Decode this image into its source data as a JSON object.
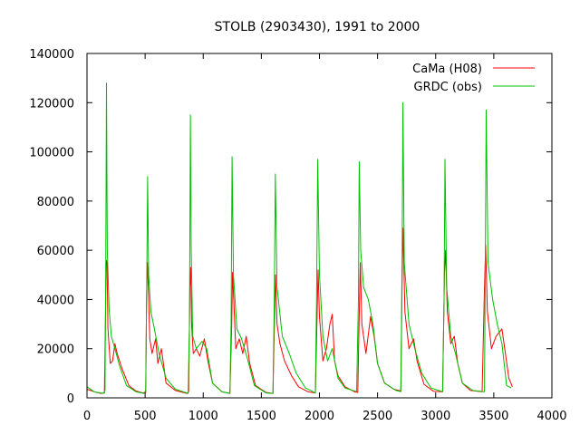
{
  "chart_data": {
    "type": "line",
    "title": "STOLB (2903430), 1991 to 2000",
    "xlabel": "",
    "ylabel": "",
    "xlim": [
      0,
      4000
    ],
    "ylim": [
      0,
      140000
    ],
    "xticks": [
      0,
      500,
      1000,
      1500,
      2000,
      2500,
      3000,
      3500,
      4000
    ],
    "yticks": [
      0,
      20000,
      40000,
      60000,
      80000,
      100000,
      120000,
      140000
    ],
    "grid": false,
    "legend_position": "top-right",
    "series": [
      {
        "name": "CaMa (H08)",
        "color": "#ff0000",
        "points": [
          [
            0,
            3500
          ],
          [
            60,
            2500
          ],
          [
            120,
            1800
          ],
          [
            150,
            2000
          ],
          [
            158,
            30000
          ],
          [
            165,
            56000
          ],
          [
            172,
            55000
          ],
          [
            180,
            28000
          ],
          [
            200,
            14000
          ],
          [
            220,
            15000
          ],
          [
            240,
            22000
          ],
          [
            260,
            18000
          ],
          [
            300,
            12000
          ],
          [
            360,
            5000
          ],
          [
            420,
            2800
          ],
          [
            480,
            2000
          ],
          [
            505,
            2200
          ],
          [
            512,
            40000
          ],
          [
            520,
            55000
          ],
          [
            528,
            45000
          ],
          [
            540,
            24000
          ],
          [
            560,
            18000
          ],
          [
            590,
            24000
          ],
          [
            610,
            14000
          ],
          [
            640,
            20000
          ],
          [
            680,
            6000
          ],
          [
            760,
            3000
          ],
          [
            860,
            1800
          ],
          [
            875,
            2500
          ],
          [
            885,
            45000
          ],
          [
            892,
            53000
          ],
          [
            900,
            30000
          ],
          [
            915,
            18000
          ],
          [
            940,
            20000
          ],
          [
            970,
            17000
          ],
          [
            1010,
            24000
          ],
          [
            1040,
            15000
          ],
          [
            1080,
            6000
          ],
          [
            1160,
            2500
          ],
          [
            1230,
            1800
          ],
          [
            1245,
            30000
          ],
          [
            1252,
            51000
          ],
          [
            1262,
            40000
          ],
          [
            1280,
            20000
          ],
          [
            1310,
            24000
          ],
          [
            1340,
            18000
          ],
          [
            1370,
            25000
          ],
          [
            1400,
            14000
          ],
          [
            1450,
            5000
          ],
          [
            1540,
            2200
          ],
          [
            1600,
            1800
          ],
          [
            1615,
            35000
          ],
          [
            1622,
            50000
          ],
          [
            1635,
            30000
          ],
          [
            1660,
            22000
          ],
          [
            1700,
            15000
          ],
          [
            1760,
            9000
          ],
          [
            1820,
            4500
          ],
          [
            1900,
            2500
          ],
          [
            1965,
            2000
          ],
          [
            1978,
            30000
          ],
          [
            1988,
            52000
          ],
          [
            2000,
            33000
          ],
          [
            2030,
            15000
          ],
          [
            2060,
            20000
          ],
          [
            2090,
            30000
          ],
          [
            2110,
            34000
          ],
          [
            2130,
            15000
          ],
          [
            2160,
            9000
          ],
          [
            2220,
            4500
          ],
          [
            2300,
            2500
          ],
          [
            2330,
            2200
          ],
          [
            2345,
            40000
          ],
          [
            2352,
            55000
          ],
          [
            2365,
            30000
          ],
          [
            2400,
            18000
          ],
          [
            2440,
            33000
          ],
          [
            2470,
            25000
          ],
          [
            2500,
            14000
          ],
          [
            2560,
            6000
          ],
          [
            2640,
            3500
          ],
          [
            2700,
            2800
          ],
          [
            2712,
            50000
          ],
          [
            2720,
            69000
          ],
          [
            2735,
            35000
          ],
          [
            2770,
            20000
          ],
          [
            2810,
            24000
          ],
          [
            2840,
            15000
          ],
          [
            2900,
            5500
          ],
          [
            2980,
            2700
          ],
          [
            3060,
            2500
          ],
          [
            3075,
            50000
          ],
          [
            3085,
            60000
          ],
          [
            3100,
            35000
          ],
          [
            3130,
            22000
          ],
          [
            3160,
            25000
          ],
          [
            3190,
            14000
          ],
          [
            3230,
            6000
          ],
          [
            3300,
            3000
          ],
          [
            3400,
            2500
          ],
          [
            3420,
            45000
          ],
          [
            3430,
            62000
          ],
          [
            3445,
            35000
          ],
          [
            3480,
            20000
          ],
          [
            3520,
            25000
          ],
          [
            3570,
            28000
          ],
          [
            3600,
            18000
          ],
          [
            3630,
            8000
          ],
          [
            3660,
            4500
          ]
        ]
      },
      {
        "name": "GRDC (obs)",
        "color": "#00c000",
        "points": [
          [
            0,
            4500
          ],
          [
            60,
            2500
          ],
          [
            140,
            1800
          ],
          [
            155,
            3000
          ],
          [
            162,
            60000
          ],
          [
            168,
            128000
          ],
          [
            175,
            60000
          ],
          [
            190,
            36000
          ],
          [
            210,
            25000
          ],
          [
            240,
            20000
          ],
          [
            280,
            13000
          ],
          [
            340,
            5000
          ],
          [
            420,
            2500
          ],
          [
            490,
            1800
          ],
          [
            505,
            3000
          ],
          [
            515,
            50000
          ],
          [
            522,
            90000
          ],
          [
            530,
            50000
          ],
          [
            550,
            35000
          ],
          [
            580,
            28000
          ],
          [
            620,
            18000
          ],
          [
            680,
            8000
          ],
          [
            760,
            3500
          ],
          [
            870,
            1800
          ],
          [
            882,
            30000
          ],
          [
            890,
            115000
          ],
          [
            897,
            60000
          ],
          [
            910,
            25000
          ],
          [
            940,
            20000
          ],
          [
            990,
            23000
          ],
          [
            1030,
            20000
          ],
          [
            1080,
            6000
          ],
          [
            1160,
            2500
          ],
          [
            1230,
            1800
          ],
          [
            1240,
            30000
          ],
          [
            1248,
            98000
          ],
          [
            1260,
            50000
          ],
          [
            1290,
            28000
          ],
          [
            1330,
            24000
          ],
          [
            1380,
            16000
          ],
          [
            1440,
            5000
          ],
          [
            1540,
            2000
          ],
          [
            1600,
            1800
          ],
          [
            1612,
            40000
          ],
          [
            1620,
            91000
          ],
          [
            1635,
            45000
          ],
          [
            1680,
            25000
          ],
          [
            1740,
            18000
          ],
          [
            1800,
            10000
          ],
          [
            1880,
            4000
          ],
          [
            1965,
            2000
          ],
          [
            1975,
            40000
          ],
          [
            1985,
            97000
          ],
          [
            2000,
            50000
          ],
          [
            2030,
            25000
          ],
          [
            2070,
            15000
          ],
          [
            2110,
            20000
          ],
          [
            2160,
            8000
          ],
          [
            2220,
            4000
          ],
          [
            2320,
            2500
          ],
          [
            2335,
            40000
          ],
          [
            2342,
            96000
          ],
          [
            2355,
            60000
          ],
          [
            2380,
            45000
          ],
          [
            2420,
            40000
          ],
          [
            2460,
            30000
          ],
          [
            2500,
            14000
          ],
          [
            2560,
            6000
          ],
          [
            2660,
            3000
          ],
          [
            2700,
            2500
          ],
          [
            2712,
            60000
          ],
          [
            2718,
            120000
          ],
          [
            2730,
            55000
          ],
          [
            2770,
            30000
          ],
          [
            2820,
            20000
          ],
          [
            2880,
            10000
          ],
          [
            2960,
            4000
          ],
          [
            3060,
            2500
          ],
          [
            3072,
            40000
          ],
          [
            3080,
            97000
          ],
          [
            3095,
            45000
          ],
          [
            3130,
            25000
          ],
          [
            3170,
            18000
          ],
          [
            3230,
            6000
          ],
          [
            3320,
            3000
          ],
          [
            3420,
            2500
          ],
          [
            3428,
            60000
          ],
          [
            3435,
            117000
          ],
          [
            3450,
            55000
          ],
          [
            3490,
            40000
          ],
          [
            3530,
            30000
          ],
          [
            3570,
            22000
          ],
          [
            3610,
            5000
          ],
          [
            3650,
            4000
          ]
        ]
      }
    ]
  }
}
